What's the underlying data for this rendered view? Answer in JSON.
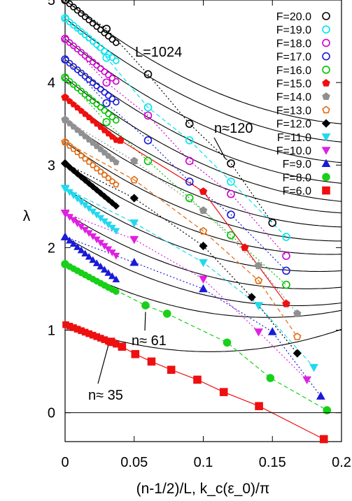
{
  "chart_data": {
    "type": "line",
    "title": "",
    "xlabel": "(n-1/2)/L, k_c(ε_0)/π",
    "ylabel": "λ",
    "xlim": [
      0,
      0.2
    ],
    "ylim": [
      -0.35,
      5
    ],
    "x_ticks": [
      "0",
      "0.05",
      "0.1",
      "0.15",
      "0.2"
    ],
    "y_ticks": [
      "0",
      "1",
      "2",
      "3",
      "4",
      "5"
    ],
    "x_tick_values": [
      0,
      0.05,
      0.1,
      0.15,
      0.2
    ],
    "y_tick_values": [
      0,
      1,
      2,
      3,
      4,
      5
    ],
    "legend_position": "top-right",
    "grid": false,
    "annotations": [
      {
        "text": "L=1024"
      },
      {
        "text": "n≈120",
        "x": 0.1162,
        "y": 3.02
      },
      {
        "text": "n≈ 61",
        "x": 0.0582,
        "y": 1.28
      },
      {
        "text": "n≈ 35",
        "x": 0.0332,
        "y": 0.86
      }
    ],
    "series": [
      {
        "name": "F=20.0",
        "color": "#000000",
        "marker": "circle-open",
        "line": "dotted",
        "coarse_x": [
          0.0,
          0.03,
          0.06,
          0.09,
          0.12,
          0.15
        ],
        "coarse_y": [
          5.0,
          4.65,
          4.1,
          3.5,
          3.02,
          2.3
        ],
        "dense_y0": 5.0,
        "dense_slope": -14
      },
      {
        "name": "F=19.0",
        "color": "#00e5ee",
        "marker": "circle-open",
        "line": "dashed",
        "coarse_x": [
          0.0,
          0.03,
          0.06,
          0.09,
          0.12,
          0.16
        ],
        "coarse_y": [
          4.78,
          4.3,
          3.7,
          3.3,
          2.8,
          2.13
        ],
        "dense_y0": 4.78,
        "dense_slope": -14
      },
      {
        "name": "F=18.0",
        "color": "#d000d0",
        "marker": "circle-open",
        "line": "dotted",
        "coarse_x": [
          0.0,
          0.03,
          0.06,
          0.09,
          0.12,
          0.16
        ],
        "coarse_y": [
          4.53,
          4.0,
          3.6,
          3.05,
          2.65,
          1.9
        ],
        "dense_y0": 4.53,
        "dense_slope": -14
      },
      {
        "name": "F=17.0",
        "color": "#1a1ad8",
        "marker": "circle-open",
        "line": "dotted",
        "coarse_x": [
          0.0,
          0.03,
          0.06,
          0.09,
          0.12,
          0.16
        ],
        "coarse_y": [
          4.28,
          3.75,
          3.3,
          2.8,
          2.4,
          1.72
        ],
        "dense_y0": 4.28,
        "dense_slope": -14
      },
      {
        "name": "F=16.0",
        "color": "#00c000",
        "marker": "circle-open",
        "line": "dotted",
        "coarse_x": [
          0.0,
          0.03,
          0.06,
          0.09,
          0.12,
          0.16
        ],
        "coarse_y": [
          4.06,
          3.52,
          3.05,
          2.6,
          2.15,
          1.55
        ],
        "dense_y0": 4.06,
        "dense_slope": -14
      },
      {
        "name": "F=15.0",
        "color": "#ee1010",
        "marker": "pentagon-filled",
        "line": "solid",
        "coarse_x": [
          0.0,
          0.04,
          0.1,
          0.13,
          0.16
        ],
        "coarse_y": [
          3.82,
          3.3,
          2.68,
          2.0,
          1.32
        ],
        "dense_y0": 3.82,
        "dense_slope": -14
      },
      {
        "name": "F=14.0",
        "color": "#909090",
        "marker": "pentagon-filled",
        "line": "dotted",
        "coarse_x": [
          0.0,
          0.05,
          0.1,
          0.14,
          0.168
        ],
        "coarse_y": [
          3.55,
          3.05,
          2.45,
          1.78,
          1.2
        ],
        "dense_y0": 3.55,
        "dense_slope": -14
      },
      {
        "name": "F=13.0",
        "color": "#e06a10",
        "marker": "pentagon-open",
        "line": "dashed",
        "coarse_x": [
          0.0,
          0.05,
          0.1,
          0.14,
          0.168
        ],
        "coarse_y": [
          3.28,
          2.82,
          2.2,
          1.6,
          0.92
        ],
        "dense_y0": 3.28,
        "dense_slope": -14
      },
      {
        "name": "F=12.0",
        "color": "#000000",
        "marker": "diamond-filled",
        "line": "dotted",
        "coarse_x": [
          0.0,
          0.05,
          0.1,
          0.135,
          0.168
        ],
        "coarse_y": [
          3.02,
          2.6,
          2.02,
          1.4,
          0.72
        ],
        "dense_y0": 3.02,
        "dense_slope": -14
      },
      {
        "name": "F=11.0",
        "color": "#22d8ee",
        "marker": "triangle-down-filled",
        "line": "dashed",
        "coarse_x": [
          0.0,
          0.05,
          0.1,
          0.14,
          0.18
        ],
        "coarse_y": [
          2.72,
          2.3,
          1.82,
          1.3,
          0.55
        ],
        "dense_y0": 2.72,
        "dense_slope": -14
      },
      {
        "name": "F=10.0",
        "color": "#e020e0",
        "marker": "triangle-down-filled",
        "line": "dotted",
        "coarse_x": [
          0.0,
          0.05,
          0.1,
          0.14,
          0.175
        ],
        "coarse_y": [
          2.42,
          2.1,
          1.62,
          0.98,
          0.4
        ],
        "dense_y0": 2.42,
        "dense_slope": -14
      },
      {
        "name": "F=9.0",
        "color": "#1a1ad8",
        "marker": "triangle-up-filled",
        "line": "dotted",
        "coarse_x": [
          0.0,
          0.05,
          0.1,
          0.15,
          0.185
        ],
        "coarse_y": [
          2.13,
          1.82,
          1.5,
          0.98,
          0.2
        ],
        "dense_y0": 2.13,
        "dense_slope": -14
      },
      {
        "name": "F=8.0",
        "color": "#18d018",
        "marker": "circle-filled",
        "line": "dashed",
        "coarse_x": [
          0.0,
          0.0582,
          0.0738,
          0.1172,
          0.1485,
          0.1895
        ],
        "coarse_y": [
          1.8,
          1.3,
          1.2,
          0.85,
          0.42,
          0.03
        ],
        "dense_y0": 1.8,
        "dense_slope": -9
      },
      {
        "name": "F=6.0",
        "color": "#ee1010",
        "marker": "square-filled",
        "line": "solid",
        "coarse_x": [
          0.0332,
          0.0412,
          0.0508,
          0.0625,
          0.0768,
          0.0957,
          0.1148,
          0.1403,
          0.1872
        ],
        "coarse_y": [
          0.86,
          0.8,
          0.71,
          0.62,
          0.52,
          0.4,
          0.25,
          0.08,
          -0.32
        ],
        "dense_y0": 1.07,
        "dense_slope": -6.5
      }
    ],
    "envelope_curves": [
      {
        "a": 5.0,
        "b": 13.5,
        "c": 0
      },
      {
        "a": 4.78,
        "b": 13.5,
        "c": 0
      },
      {
        "a": 4.53,
        "b": 13.5,
        "c": 0
      },
      {
        "a": 4.28,
        "b": 13.5,
        "c": 0
      },
      {
        "a": 4.06,
        "b": 13.5,
        "c": 0
      },
      {
        "a": 3.82,
        "b": 13.0,
        "c": 0
      },
      {
        "a": 3.55,
        "b": 12.5,
        "c": 0
      },
      {
        "a": 3.28,
        "b": 12.0,
        "c": 0
      },
      {
        "a": 3.02,
        "b": 11.5,
        "c": 0
      },
      {
        "a": 2.72,
        "b": 11.0,
        "c": 0
      },
      {
        "a": 2.42,
        "b": 10.5,
        "c": 0
      },
      {
        "a": 2.13,
        "b": 10.0,
        "c": 0
      },
      {
        "a": 1.8,
        "b": 8.8,
        "c": 0
      },
      {
        "a": 1.07,
        "b": 6.3,
        "c": 0
      }
    ]
  }
}
